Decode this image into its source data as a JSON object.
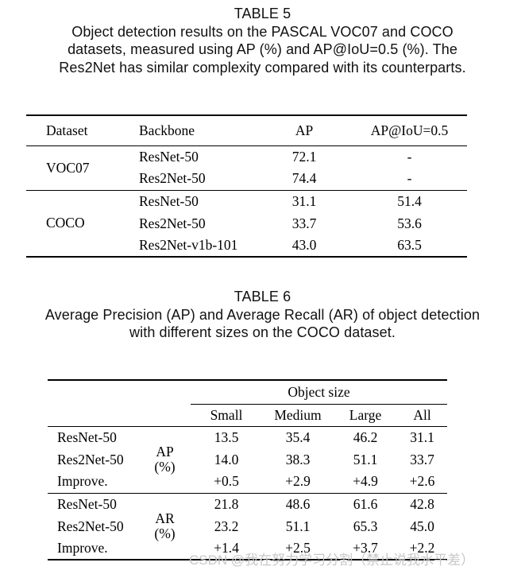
{
  "watermark": {
    "text": "CSDN @我在努力学习分割（禁止说我水平差）",
    "color": "#c8c8cb"
  },
  "table5": {
    "label": "TABLE 5",
    "caption_lines": [
      "Object detection results on the PASCAL VOC07 and COCO",
      "datasets, measured using AP (%) and AP@IoU=0.5 (%). The",
      "Res2Net has similar complexity compared with its counterparts."
    ],
    "columns": [
      "Dataset",
      "Backbone",
      "AP",
      "AP@IoU=0.5"
    ],
    "groups": [
      {
        "dataset": "VOC07",
        "rows": [
          {
            "backbone": "ResNet-50",
            "ap": "72.1",
            "ap_iou": "-"
          },
          {
            "backbone": "Res2Net-50",
            "ap": "74.4",
            "ap_iou": "-"
          }
        ]
      },
      {
        "dataset": "COCO",
        "rows": [
          {
            "backbone": "ResNet-50",
            "ap": "31.1",
            "ap_iou": "51.4"
          },
          {
            "backbone": "Res2Net-50",
            "ap": "33.7",
            "ap_iou": "53.6"
          },
          {
            "backbone": "Res2Net-v1b-101",
            "ap": "43.0",
            "ap_iou": "63.5"
          }
        ]
      }
    ]
  },
  "table6": {
    "label": "TABLE 6",
    "caption_lines": [
      "Average Precision (AP) and Average Recall (AR) of object detection",
      "with different sizes on the COCO dataset."
    ],
    "group_header": "Object size",
    "size_columns": [
      "Small",
      "Medium",
      "Large",
      "All"
    ],
    "groups": [
      {
        "metric_line1": "AP",
        "metric_line2": "(%)",
        "rows": [
          {
            "model": "ResNet-50",
            "values": [
              "13.5",
              "35.4",
              "46.2",
              "31.1"
            ]
          },
          {
            "model": "Res2Net-50",
            "values": [
              "14.0",
              "38.3",
              "51.1",
              "33.7"
            ]
          },
          {
            "model": "Improve.",
            "values": [
              "+0.5",
              "+2.9",
              "+4.9",
              "+2.6"
            ]
          }
        ]
      },
      {
        "metric_line1": "AR",
        "metric_line2": "(%)",
        "rows": [
          {
            "model": "ResNet-50",
            "values": [
              "21.8",
              "48.6",
              "61.6",
              "42.8"
            ]
          },
          {
            "model": "Res2Net-50",
            "values": [
              "23.2",
              "51.1",
              "65.3",
              "45.0"
            ]
          },
          {
            "model": "Improve.",
            "values": [
              "+1.4",
              "+2.5",
              "+3.7",
              "+2.2"
            ]
          }
        ]
      }
    ]
  }
}
